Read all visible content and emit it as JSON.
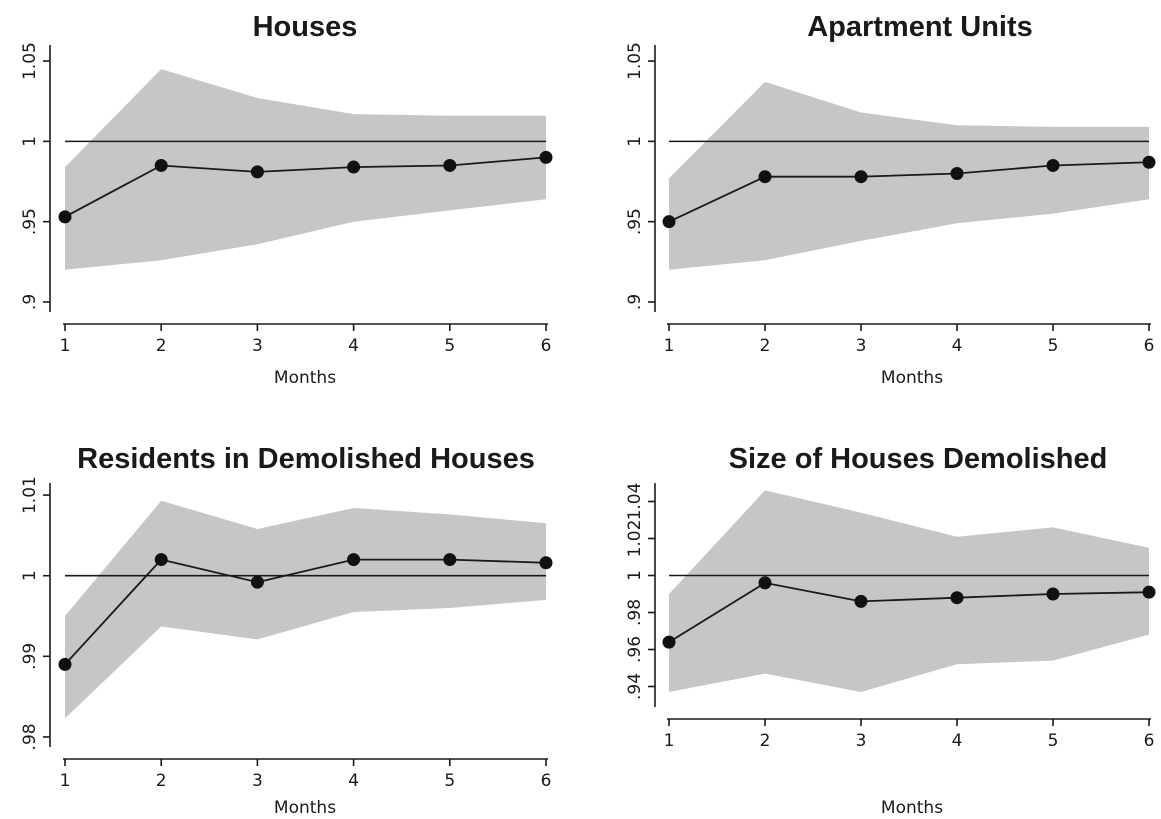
{
  "colors": {
    "band": "#c6c6c6",
    "line": "#1a1a1a",
    "point": "#111111",
    "reference": "#1a1a1a",
    "background": "#ffffff"
  },
  "chart_data": [
    {
      "type": "line",
      "title": "Houses",
      "xlabel": "Months",
      "ylabel": "",
      "x": [
        1,
        2,
        3,
        4,
        5,
        6
      ],
      "x_ticks": [
        "1",
        "2",
        "3",
        "4",
        "5",
        "6"
      ],
      "ylim": [
        0.895,
        1.06
      ],
      "y_ticks": [
        0.9,
        0.95,
        1.0,
        1.05
      ],
      "y_tick_labels": [
        ".9",
        ".95",
        "1",
        "1.05"
      ],
      "reference_line": 1.0,
      "series": [
        {
          "values": [
            0.953,
            0.985,
            0.981,
            0.984,
            0.985,
            0.99
          ],
          "band_upper": [
            0.984,
            1.045,
            1.027,
            1.017,
            1.016,
            1.016
          ],
          "band_lower": [
            0.92,
            0.926,
            0.936,
            0.95,
            0.957,
            0.964
          ]
        }
      ]
    },
    {
      "type": "line",
      "title": "Apartment Units",
      "xlabel": "Months",
      "ylabel": "",
      "x": [
        1,
        2,
        3,
        4,
        5,
        6
      ],
      "x_ticks": [
        "1",
        "2",
        "3",
        "4",
        "5",
        "6"
      ],
      "ylim": [
        0.895,
        1.06
      ],
      "y_ticks": [
        0.9,
        0.95,
        1.0,
        1.05
      ],
      "y_tick_labels": [
        ".9",
        ".95",
        "1",
        "1.05"
      ],
      "reference_line": 1.0,
      "series": [
        {
          "values": [
            0.95,
            0.978,
            0.978,
            0.98,
            0.985,
            0.987
          ],
          "band_upper": [
            0.977,
            1.037,
            1.018,
            1.01,
            1.009,
            1.009
          ],
          "band_lower": [
            0.92,
            0.926,
            0.938,
            0.949,
            0.955,
            0.964
          ]
        }
      ]
    },
    {
      "type": "line",
      "title": "Residents in Demolished Houses",
      "xlabel": "Months",
      "ylabel": "",
      "x": [
        1,
        2,
        3,
        4,
        5,
        6
      ],
      "x_ticks": [
        "1",
        "2",
        "3",
        "4",
        "5",
        "6"
      ],
      "ylim": [
        0.979,
        1.0115
      ],
      "y_ticks": [
        0.98,
        0.99,
        1.0,
        1.01
      ],
      "y_tick_labels": [
        ".98",
        ".99",
        "1",
        "1.01"
      ],
      "reference_line": 1.0,
      "series": [
        {
          "values": [
            0.989,
            1.002,
            0.9992,
            1.002,
            1.002,
            1.0016
          ],
          "band_upper": [
            0.995,
            1.0093,
            1.0058,
            1.0084,
            1.0076,
            1.0065
          ],
          "band_lower": [
            0.9823,
            0.9937,
            0.9921,
            0.9955,
            0.996,
            0.997
          ]
        }
      ]
    },
    {
      "type": "line",
      "title": "Size of Houses Demolished",
      "xlabel": "Months",
      "ylabel": "",
      "x": [
        1,
        2,
        3,
        4,
        5,
        6
      ],
      "x_ticks": [
        "1",
        "2",
        "3",
        "4",
        "5",
        "6"
      ],
      "ylim": [
        0.93,
        1.05
      ],
      "y_ticks": [
        0.94,
        0.96,
        0.98,
        1.0,
        1.02,
        1.04
      ],
      "y_tick_labels": [
        ".94",
        ".96",
        ".98",
        "1",
        "1.02",
        "1.04"
      ],
      "reference_line": 1.0,
      "series": [
        {
          "values": [
            0.964,
            0.996,
            0.986,
            0.988,
            0.99,
            0.991
          ],
          "band_upper": [
            0.99,
            1.046,
            1.034,
            1.021,
            1.026,
            1.015
          ],
          "band_lower": [
            0.937,
            0.947,
            0.937,
            0.952,
            0.954,
            0.968
          ]
        }
      ]
    }
  ]
}
